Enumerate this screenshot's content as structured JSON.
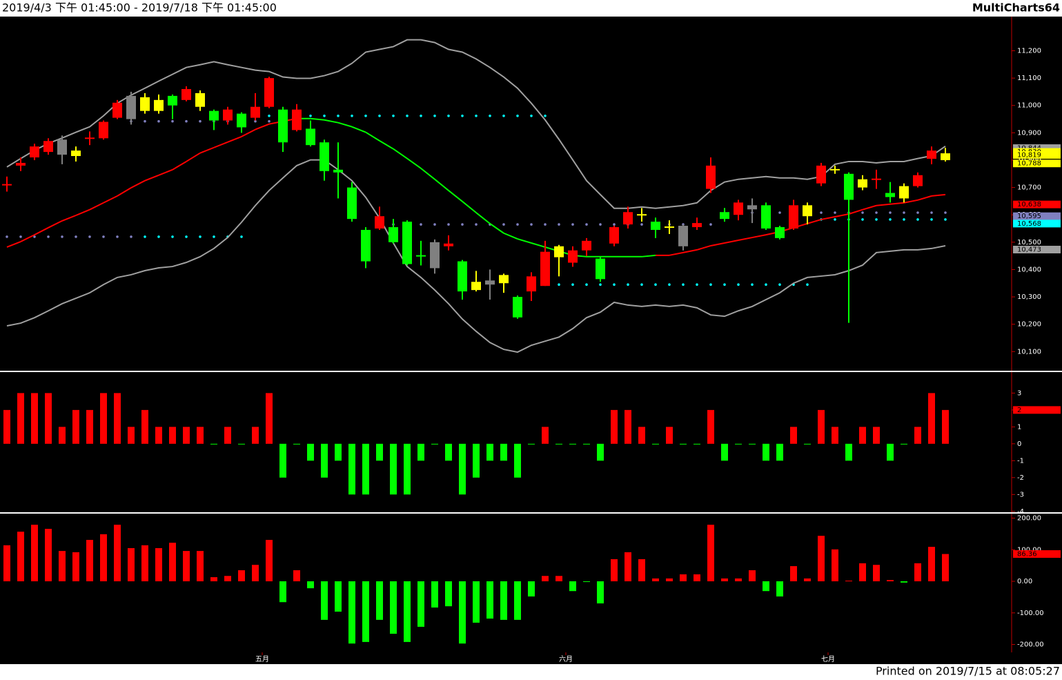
{
  "header": {
    "range": "2019/4/3 下午 01:45:00 - 2019/7/18 下午 01:45:00",
    "brand": "MultiCharts64"
  },
  "footer": "Printed on 2019/7/15 at 08:05:27",
  "chart_data": [
    {
      "type": "candlestick",
      "categories": [
        null,
        null,
        null,
        null,
        null,
        null,
        null,
        null,
        null,
        null,
        null,
        null,
        null,
        null,
        null,
        null,
        null,
        null,
        null,
        "五月",
        null,
        null,
        null,
        null,
        null,
        null,
        null,
        null,
        null,
        null,
        null,
        null,
        null,
        null,
        null,
        null,
        null,
        null,
        null,
        null,
        null,
        "六月",
        null,
        null,
        null,
        null,
        null,
        null,
        null,
        null,
        null,
        null,
        null,
        null,
        null,
        null,
        null,
        null,
        null,
        null,
        "七月",
        null,
        null,
        null,
        null,
        null,
        null,
        null,
        null
      ],
      "open": [
        10705,
        10780,
        10810,
        10830,
        10875,
        10835,
        10875,
        10880,
        10955,
        11035,
        11030,
        11020,
        11035,
        11020,
        11045,
        10980,
        10945,
        10970,
        10955,
        10995,
        10985,
        10910,
        10915,
        10865,
        10765,
        10700,
        10545,
        10550,
        10555,
        10575,
        10450,
        10500,
        10485,
        10430,
        10355,
        10360,
        10380,
        10300,
        10320,
        10340,
        10485,
        10425,
        10470,
        10440,
        10495,
        10565,
        10600,
        10575,
        10555,
        10560,
        10555,
        10695,
        10610,
        10600,
        10635,
        10635,
        10555,
        10550,
        10635,
        10715,
        10765,
        10750,
        10730,
        10725,
        10680,
        10705,
        10705,
        10805,
        10825
      ],
      "high": [
        10740,
        10810,
        10860,
        10880,
        10890,
        10850,
        10905,
        10945,
        11020,
        11050,
        11045,
        11040,
        11040,
        11070,
        11055,
        10985,
        10995,
        10975,
        11045,
        11105,
        10995,
        11005,
        10945,
        10875,
        10865,
        10720,
        10555,
        10630,
        10585,
        10580,
        10505,
        10510,
        10525,
        10435,
        10395,
        10400,
        10385,
        10305,
        10390,
        10505,
        10490,
        10485,
        10515,
        10445,
        10560,
        10630,
        10625,
        10590,
        10580,
        10565,
        10590,
        10810,
        10625,
        10655,
        10660,
        10645,
        10560,
        10655,
        10645,
        10790,
        10780,
        10755,
        10745,
        10765,
        10720,
        10715,
        10755,
        10850,
        10845
      ],
      "low": [
        10685,
        10760,
        10800,
        10820,
        10785,
        10795,
        10855,
        10875,
        10950,
        10930,
        10970,
        10970,
        10950,
        11015,
        10980,
        10910,
        10930,
        10900,
        10945,
        10990,
        10830,
        10905,
        10850,
        10725,
        10660,
        10575,
        10405,
        10545,
        10495,
        10415,
        10415,
        10385,
        10470,
        10290,
        10320,
        10290,
        10315,
        10220,
        10285,
        10340,
        10375,
        10410,
        10450,
        10355,
        10485,
        10550,
        10575,
        10515,
        10530,
        10470,
        10545,
        10680,
        10575,
        10580,
        10570,
        10545,
        10510,
        10545,
        10565,
        10705,
        10750,
        10205,
        10690,
        10695,
        10645,
        10645,
        10700,
        10785,
        10795
      ],
      "close": [
        10710,
        10790,
        10850,
        10870,
        10820,
        10815,
        10880,
        10940,
        11010,
        10950,
        10980,
        10980,
        11000,
        11060,
        10995,
        10945,
        10985,
        10920,
        10995,
        11100,
        10865,
        10985,
        10855,
        10760,
        10755,
        10585,
        10430,
        10595,
        10500,
        10420,
        10445,
        10405,
        10495,
        10320,
        10325,
        10345,
        10350,
        10225,
        10375,
        10465,
        10445,
        10470,
        10505,
        10365,
        10555,
        10610,
        10600,
        10545,
        10550,
        10485,
        10570,
        10780,
        10585,
        10645,
        10620,
        10550,
        10515,
        10635,
        10595,
        10780,
        10765,
        10655,
        10700,
        10730,
        10665,
        10660,
        10745,
        10835,
        10800
      ],
      "colors": [
        "#ff0000",
        "#ff0000",
        "#ff0000",
        "#ff0000",
        "#808080",
        "#ffff00",
        "#ff0000",
        "#ff0000",
        "#ff0000",
        "#808080",
        "#ffff00",
        "#ffff00",
        "#00ff00",
        "#ff0000",
        "#ffff00",
        "#00ff00",
        "#ff0000",
        "#00ff00",
        "#ff0000",
        "#ff0000",
        "#00ff00",
        "#ff0000",
        "#00ff00",
        "#00ff00",
        "#00ff00",
        "#00ff00",
        "#00ff00",
        "#ff0000",
        "#00ff00",
        "#00ff00",
        "#00ff00",
        "#808080",
        "#ff0000",
        "#00ff00",
        "#ffff00",
        "#808080",
        "#ffff00",
        "#00ff00",
        "#ff0000",
        "#ff0000",
        "#ffff00",
        "#ff0000",
        "#ff0000",
        "#00ff00",
        "#ff0000",
        "#ff0000",
        "#ffff00",
        "#00ff00",
        "#ffff00",
        "#808080",
        "#ff0000",
        "#ff0000",
        "#00ff00",
        "#ff0000",
        "#808080",
        "#00ff00",
        "#00ff00",
        "#ff0000",
        "#ffff00",
        "#ff0000",
        "#ffff00",
        "#00ff00",
        "#ffff00",
        "#ff0000",
        "#00ff00",
        "#ffff00",
        "#ff0000",
        "#ff0000",
        "#ffff00"
      ],
      "overlays": [
        {
          "color": "#a0a0a0",
          "values": [
            10775,
            10806,
            10836,
            10861,
            10881,
            10902,
            10922,
            10962,
            11008,
            11038,
            11063,
            11089,
            11114,
            11139,
            11149,
            11160,
            11149,
            11139,
            11129,
            11124,
            11104,
            11099,
            11099,
            11109,
            11124,
            11154,
            11195,
            11205,
            11215,
            11240,
            11240,
            11230,
            11205,
            11195,
            11170,
            11139,
            11104,
            11063,
            11008,
            10947,
            10876,
            10801,
            10725,
            10674,
            10624,
            10624,
            10629,
            10624,
            10629,
            10634,
            10644,
            10689,
            10720,
            10730,
            10735,
            10740,
            10735,
            10735,
            10730,
            10740,
            10785,
            10795,
            10795,
            10790,
            10795,
            10795,
            10806,
            10816,
            10851
          ]
        },
        {
          "color": "#a0a0a0",
          "values": [
            10194,
            10204,
            10224,
            10249,
            10275,
            10295,
            10315,
            10345,
            10371,
            10381,
            10396,
            10406,
            10411,
            10426,
            10447,
            10477,
            10517,
            10573,
            10634,
            10689,
            10735,
            10780,
            10801,
            10801,
            10765,
            10725,
            10664,
            10588,
            10497,
            10411,
            10371,
            10325,
            10275,
            10219,
            10174,
            10133,
            10108,
            10098,
            10123,
            10138,
            10153,
            10184,
            10224,
            10244,
            10280,
            10270,
            10265,
            10270,
            10265,
            10270,
            10260,
            10234,
            10229,
            10249,
            10265,
            10290,
            10315,
            10350,
            10371,
            10376,
            10381,
            10396,
            10416,
            10462,
            10467,
            10472,
            10472,
            10477,
            10487
          ]
        },
        {
          "colors": [
            "#ff0000",
            "#ff0000",
            "#ff0000",
            "#ff0000",
            "#ff0000",
            "#ff0000",
            "#ff0000",
            "#ff0000",
            "#ff0000",
            "#ff0000",
            "#ff0000",
            "#ff0000",
            "#ff0000",
            "#ff0000",
            "#ff0000",
            "#ff0000",
            "#ff0000",
            "#ff0000",
            "#ff0000",
            "#ff0000",
            "#ff0000",
            "#ff0000",
            "#00ff00",
            "#00ff00",
            "#00ff00",
            "#00ff00",
            "#00ff00",
            "#00ff00",
            "#00ff00",
            "#00ff00",
            "#00ff00",
            "#00ff00",
            "#00ff00",
            "#00ff00",
            "#00ff00",
            "#00ff00",
            "#00ff00",
            "#00ff00",
            "#00ff00",
            "#00ff00",
            "#00ff00",
            "#00ff00",
            "#00ff00",
            "#00ff00",
            "#00ff00",
            "#00ff00",
            "#00ff00",
            "#00ff00",
            "#ff0000",
            "#ff0000",
            "#ff0000",
            "#ff0000",
            "#ff0000",
            "#ff0000",
            "#ff0000",
            "#ff0000",
            "#ff0000",
            "#ff0000",
            "#ff0000",
            "#ff0000",
            "#ff0000",
            "#ff0000",
            "#ff0000",
            "#ff0000",
            "#ff0000",
            "#ff0000",
            "#ff0000",
            "#ff0000",
            "#ff0000"
          ],
          "values": [
            10482,
            10502,
            10527,
            10553,
            10578,
            10598,
            10619,
            10644,
            10669,
            10699,
            10725,
            10745,
            10765,
            10795,
            10826,
            10846,
            10866,
            10886,
            10912,
            10932,
            10942,
            10952,
            10952,
            10947,
            10937,
            10922,
            10902,
            10871,
            10841,
            10806,
            10770,
            10730,
            10689,
            10649,
            10608,
            10568,
            10533,
            10512,
            10497,
            10482,
            10467,
            10452,
            10447,
            10447,
            10447,
            10447,
            10447,
            10452,
            10452,
            10462,
            10472,
            10487,
            10497,
            10507,
            10517,
            10527,
            10538,
            10553,
            10568,
            10583,
            10593,
            10603,
            10619,
            10634,
            10639,
            10644,
            10654,
            10669,
            10674
          ]
        }
      ],
      "levels": [
        {
          "value": 10520,
          "start": 0,
          "end": 9,
          "color": "#8080c0"
        },
        {
          "value": 10520,
          "start": 10,
          "end": 17,
          "color": "#00ffff"
        },
        {
          "value": 10942,
          "start": 9,
          "end": 19,
          "color": "#8080c0"
        },
        {
          "value": 10962,
          "start": 18,
          "end": 39,
          "color": "#00ffff"
        },
        {
          "value": 10565,
          "start": 28,
          "end": 51,
          "color": "#8080c0"
        },
        {
          "value": 10345,
          "start": 40,
          "end": 58,
          "color": "#00ffff"
        },
        {
          "value": 10608,
          "start": 53,
          "end": 68,
          "color": "#8080c0"
        },
        {
          "value": 10583,
          "start": 59,
          "end": 68,
          "color": "#00ffff"
        }
      ],
      "price_tags": [
        {
          "value": 10844,
          "label": "10,844",
          "color": "#a0a0a0"
        },
        {
          "value": 10830,
          "label": "10,830",
          "color": "#ffff00"
        },
        {
          "value": 10819,
          "label": "10,819",
          "color": "#ffff00"
        },
        {
          "value": 10788,
          "label": "10,788",
          "color": "#ffff00"
        },
        {
          "value": 10638,
          "label": "10,638",
          "color": "#ff0000"
        },
        {
          "value": 10595,
          "label": "10,595",
          "color": "#8080c0"
        },
        {
          "value": 10568,
          "label": "10,568",
          "color": "#00ffff"
        },
        {
          "value": 10473,
          "label": "10,473",
          "color": "#a0a0a0"
        }
      ],
      "ylim": [
        10030,
        11325
      ],
      "yticks": [
        {
          "value": 10100,
          "label": "10,100"
        },
        {
          "value": 10200,
          "label": "10,200"
        },
        {
          "value": 10300,
          "label": "10,300"
        },
        {
          "value": 10400,
          "label": "10,400"
        },
        {
          "value": 10500,
          "label": "10,500"
        },
        {
          "value": 10600,
          "label": "10,600"
        },
        {
          "value": 10700,
          "label": "10,700"
        },
        {
          "value": 10800,
          "label": "10,800"
        },
        {
          "value": 10900,
          "label": "10,900"
        },
        {
          "value": 11000,
          "label": "11,000"
        },
        {
          "value": 11100,
          "label": "11,100"
        },
        {
          "value": 11200,
          "label": "11,200"
        }
      ]
    },
    {
      "type": "bar",
      "positive_color": "#ff0000",
      "negative_color": "#00ff00",
      "values": [
        2,
        3,
        3,
        3,
        1,
        2,
        2,
        3,
        3,
        1,
        2,
        1,
        1,
        1,
        1,
        0,
        1,
        0,
        1,
        3,
        -2,
        0,
        -1,
        -2,
        -1,
        -3,
        -3,
        -1,
        -3,
        -3,
        -1,
        0,
        -1,
        -3,
        -2,
        -1,
        -1,
        -2,
        0,
        1,
        0,
        0,
        0,
        -1,
        2,
        2,
        1,
        0,
        1,
        0,
        0,
        2,
        -1,
        0,
        0,
        -1,
        -1,
        1,
        0,
        2,
        1,
        -1,
        1,
        1,
        -1,
        0,
        1,
        3,
        2
      ],
      "price_tags": [
        {
          "value": 2,
          "label": "2",
          "color": "#ff0000"
        }
      ],
      "ylim": [
        -4.05,
        4.2
      ],
      "yticks": [
        3,
        2,
        1,
        0,
        -1,
        -2,
        -3,
        -4
      ]
    },
    {
      "type": "bar",
      "positive_color": "#ff0000",
      "negative_color": "#00ff00",
      "values": [
        114,
        157,
        179,
        166,
        96,
        92,
        131,
        149,
        179,
        105,
        114,
        105,
        122,
        96,
        96,
        13,
        17,
        35,
        52,
        131,
        -66,
        35,
        -22,
        -122,
        -96,
        -197,
        -192,
        -122,
        -166,
        -192,
        -144,
        -83,
        -79,
        -197,
        -131,
        -118,
        -122,
        -122,
        -48,
        17,
        17,
        -31,
        0,
        -70,
        70,
        92,
        70,
        9,
        9,
        22,
        22,
        179,
        9,
        9,
        35,
        -31,
        -48,
        48,
        9,
        144,
        101,
        2,
        57,
        52,
        4,
        -4,
        57,
        109,
        86.36
      ],
      "price_tags": [
        {
          "value": 86.36,
          "label": "86.36",
          "color": "#ff0000"
        }
      ],
      "ylim": [
        -225,
        212
      ],
      "yticks": [
        {
          "value": 200,
          "label": "200.00"
        },
        {
          "value": 100,
          "label": "100.00"
        },
        {
          "value": 0,
          "label": "0.00"
        },
        {
          "value": -100,
          "label": "-100.00"
        },
        {
          "value": -200,
          "label": "-200.00"
        }
      ]
    }
  ]
}
